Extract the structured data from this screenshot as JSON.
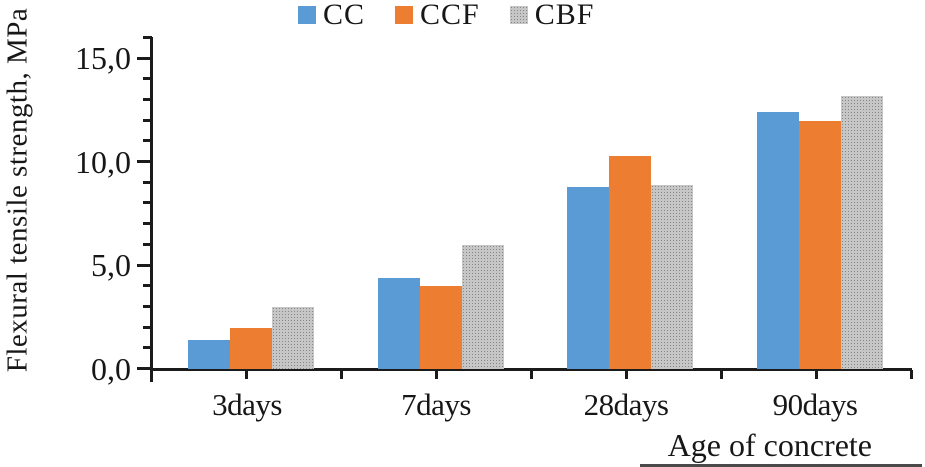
{
  "chart_data": {
    "type": "bar",
    "title": "",
    "categories": [
      "3days",
      "7days",
      "28days",
      "90days"
    ],
    "series": [
      {
        "name": "CC",
        "color": "#5B9BD5",
        "pattern": "solid",
        "values": [
          1.4,
          4.4,
          8.8,
          12.4
        ]
      },
      {
        "name": "CCF",
        "color": "#ED7D31",
        "pattern": "solid",
        "values": [
          2.0,
          4.0,
          10.3,
          12.0
        ]
      },
      {
        "name": "CBF",
        "color": "#A6A6A6",
        "pattern": "dots",
        "values": [
          3.0,
          6.0,
          8.9,
          13.2
        ]
      }
    ],
    "xlabel": "Age of concrete",
    "ylabel": "Flexural tensile strength, MPa",
    "ylim": [
      0,
      16
    ],
    "yticks": [
      {
        "value": 0,
        "label": "0,0"
      },
      {
        "value": 5,
        "label": "5,0"
      },
      {
        "value": 10,
        "label": "10,0"
      },
      {
        "value": 15,
        "label": "15,0"
      }
    ],
    "minor_tick_step": 1,
    "gridlines": false,
    "legend_position": "top-center",
    "decimal_separator": ",",
    "axis_color": "#1b1b1b",
    "text_color": "#171717"
  }
}
